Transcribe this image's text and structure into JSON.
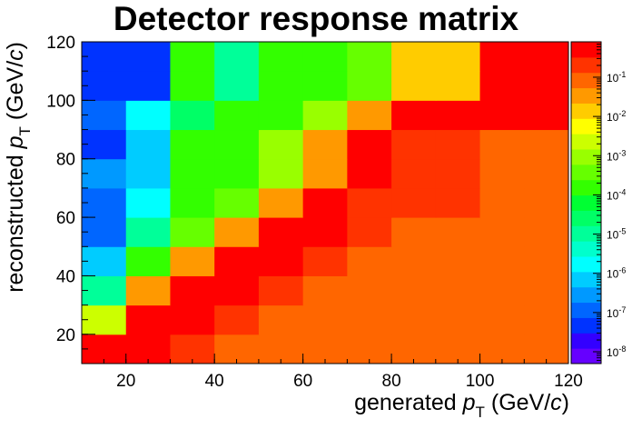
{
  "chart_data": {
    "type": "heatmap",
    "title": "Detector response matrix",
    "xlabel": {
      "main": "generated ",
      "var": "p",
      "sub": "T",
      "unit_open": " (GeV/",
      "unit_c": "c",
      "unit_close": ")"
    },
    "ylabel": {
      "main": "reconstructed ",
      "var": "p",
      "sub": "T",
      "unit_open": " (GeV/",
      "unit_c": "c",
      "unit_close": ")"
    },
    "x_bin_edges": [
      10,
      20,
      30,
      40,
      50,
      60,
      70,
      80,
      90,
      100,
      110,
      120
    ],
    "y_bin_edges": [
      10,
      20,
      30,
      40,
      50,
      60,
      70,
      80,
      90,
      100,
      110,
      120
    ],
    "xlim": [
      10,
      120
    ],
    "ylim": [
      10,
      120
    ],
    "x_ticks": [
      "20",
      "40",
      "60",
      "80",
      "100",
      "120"
    ],
    "y_ticks": [
      "20",
      "40",
      "60",
      "80",
      "100",
      "120"
    ],
    "z_scale": "log",
    "z_range": [
      5e-09,
      0.8
    ],
    "z_ticks": [
      {
        "value": 1e-08,
        "label": "10",
        "exp": "-8"
      },
      {
        "value": 1e-07,
        "label": "10",
        "exp": "-7"
      },
      {
        "value": 1e-06,
        "label": "10",
        "exp": "-6"
      },
      {
        "value": 1e-05,
        "label": "10",
        "exp": "-5"
      },
      {
        "value": 0.0001,
        "label": "10",
        "exp": "-4"
      },
      {
        "value": 0.001,
        "label": "10",
        "exp": "-3"
      },
      {
        "value": 0.01,
        "label": "10",
        "exp": "-2"
      },
      {
        "value": 0.1,
        "label": "10",
        "exp": "-1"
      }
    ],
    "palette": [
      "#6600ff",
      "#3300ff",
      "#0033ff",
      "#0066ff",
      "#0099ff",
      "#00ccff",
      "#00ffff",
      "#00ffcc",
      "#00ff99",
      "#00ff66",
      "#00ff33",
      "#33ff00",
      "#66ff00",
      "#99ff00",
      "#ccff00",
      "#ffff00",
      "#ffcc00",
      "#ff9900",
      "#ff6600",
      "#ff3300",
      "#ff0000"
    ],
    "values_note_rows_bottom_to_top": true,
    "values": [
      [
        0.5,
        0.5,
        0.2,
        0.1,
        0.1,
        0.1,
        0.08,
        0.08,
        0.08,
        0.08,
        0.08
      ],
      [
        0.002,
        0.5,
        0.5,
        0.3,
        0.1,
        0.1,
        0.1,
        0.1,
        0.1,
        0.08,
        0.08
      ],
      [
        1e-05,
        0.03,
        0.5,
        0.5,
        0.3,
        0.1,
        0.1,
        0.1,
        0.1,
        0.1,
        0.1
      ],
      [
        1e-06,
        0.0001,
        0.03,
        0.5,
        0.5,
        0.3,
        0.1,
        0.1,
        0.1,
        0.1,
        0.1
      ],
      [
        1e-07,
        1e-05,
        0.0005,
        0.03,
        0.5,
        0.5,
        0.3,
        0.1,
        0.1,
        0.1,
        0.1
      ],
      [
        1e-07,
        2e-06,
        0.0001,
        0.0005,
        0.05,
        0.5,
        0.3,
        0.3,
        0.3,
        0.1,
        0.1
      ],
      [
        2e-07,
        1e-06,
        0.0001,
        0.0001,
        0.001,
        0.05,
        0.5,
        0.3,
        0.3,
        0.1,
        0.1
      ],
      [
        5e-08,
        1e-06,
        0.0001,
        0.0001,
        0.001,
        0.05,
        0.5,
        0.3,
        0.3,
        0.1,
        0.1
      ],
      [
        1e-07,
        2e-06,
        2e-05,
        0.0001,
        0.0001,
        0.001,
        0.05,
        0.5,
        0.5,
        0.5,
        0.5
      ],
      [
        5e-08,
        5e-08,
        0.0001,
        1e-05,
        0.0001,
        0.0001,
        0.0005,
        0.01,
        0.01,
        0.5,
        0.5
      ],
      [
        5e-08,
        5e-08,
        0.0001,
        1e-05,
        0.0001,
        0.0001,
        0.0005,
        0.01,
        0.01,
        0.5,
        0.5
      ]
    ]
  }
}
